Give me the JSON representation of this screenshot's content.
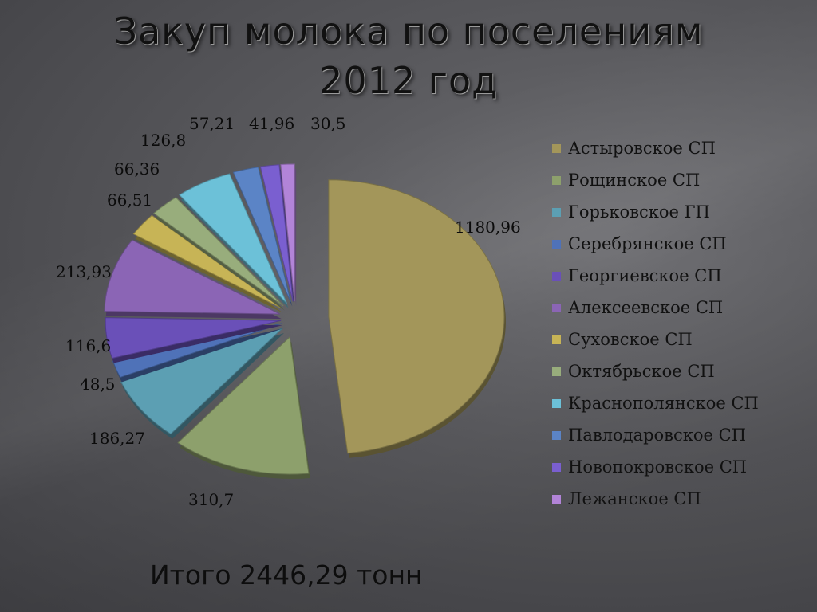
{
  "slide": {
    "title_line1": "Закуп молока по поселениям",
    "title_line2": "2012 год",
    "total": "Итого 2446,29 тонн"
  },
  "chart_data": {
    "type": "pie",
    "title": "Закуп молока по поселениям 2012 год",
    "categories": [
      "Астыровское СП",
      "Рощинское СП",
      "Горьковское ГП",
      "Серебрянское СП",
      "Георгиевское СП",
      "Алексеевское СП",
      "Суховское СП",
      "Октябрьское СП",
      "Краснополянское СП",
      "Павлодаровское СП",
      "Новопокровское СП",
      "Лежанское СП"
    ],
    "values": [
      1180.96,
      310.7,
      186.27,
      48.5,
      116.6,
      213.93,
      66.51,
      66.36,
      126.8,
      57.21,
      41.96,
      30.5
    ],
    "value_labels": [
      "1180,96",
      "310,7",
      "186,27",
      "48,5",
      "116,6",
      "213,93",
      "66,51",
      "66,36",
      "126,8",
      "57,21",
      "41,96",
      "30,5"
    ],
    "colors": [
      "#a3965a",
      "#8da06c",
      "#5c9fb3",
      "#4f72b8",
      "#6a50b8",
      "#8b65b5",
      "#c7b456",
      "#98ad7c",
      "#6cc1d8",
      "#5b84c6",
      "#7a5fd0",
      "#b284d8"
    ],
    "legend_position": "right"
  }
}
